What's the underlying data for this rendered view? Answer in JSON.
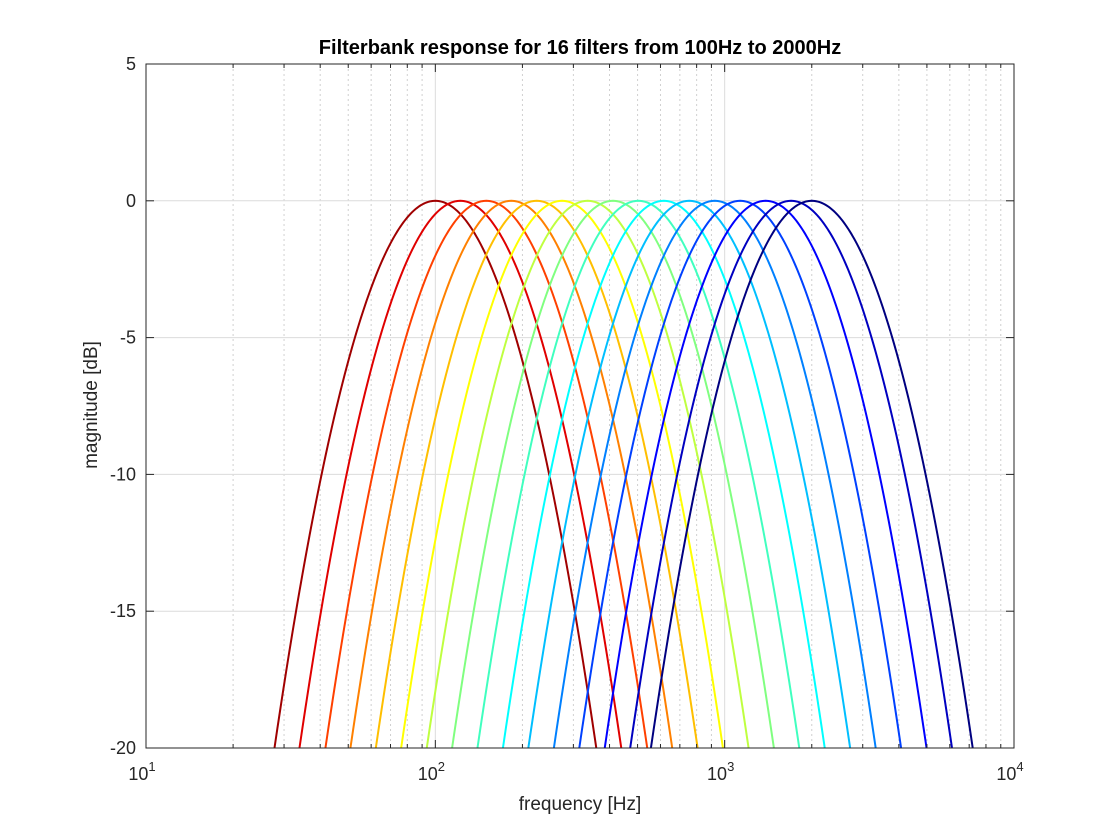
{
  "chart_data": {
    "type": "line",
    "title": "Filterbank response for 16 filters from 100Hz to 2000Hz",
    "xlabel": "frequency [Hz]",
    "ylabel": "magnitude [dB]",
    "xscale": "log",
    "xlim": [
      10,
      10000
    ],
    "ylim": [
      -20,
      5
    ],
    "grid": true,
    "x_ticks": [
      {
        "base": "10",
        "exp": "1"
      },
      {
        "base": "10",
        "exp": "2"
      },
      {
        "base": "10",
        "exp": "3"
      },
      {
        "base": "10",
        "exp": "4"
      }
    ],
    "x_tick_values": [
      10,
      100,
      1000,
      10000
    ],
    "y_ticks": [
      "5",
      "0",
      "-5",
      "-10",
      "-15",
      "-20"
    ],
    "y_tick_values": [
      5,
      0,
      -5,
      -10,
      -15,
      -20
    ],
    "curve_shape": {
      "minus20dB_low_ratio": 0.278,
      "minus20dB_high_ratio": 3.6
    },
    "series": [
      {
        "center_hz": 100,
        "color": "#a00000"
      },
      {
        "center_hz": 122,
        "color": "#e00000"
      },
      {
        "center_hz": 150,
        "color": "#ff4000"
      },
      {
        "center_hz": 183,
        "color": "#ff8000"
      },
      {
        "center_hz": 224,
        "color": "#ffbf00"
      },
      {
        "center_hz": 274,
        "color": "#ffff00"
      },
      {
        "center_hz": 336,
        "color": "#bfff40"
      },
      {
        "center_hz": 411,
        "color": "#80ff80"
      },
      {
        "center_hz": 503,
        "color": "#40ffbf"
      },
      {
        "center_hz": 616,
        "color": "#00ffff"
      },
      {
        "center_hz": 754,
        "color": "#00bfff"
      },
      {
        "center_hz": 924,
        "color": "#0080ff"
      },
      {
        "center_hz": 1131,
        "color": "#0040ff"
      },
      {
        "center_hz": 1385,
        "color": "#0000ff"
      },
      {
        "center_hz": 1696,
        "color": "#0000c0"
      },
      {
        "center_hz": 2000,
        "color": "#000080"
      }
    ]
  }
}
